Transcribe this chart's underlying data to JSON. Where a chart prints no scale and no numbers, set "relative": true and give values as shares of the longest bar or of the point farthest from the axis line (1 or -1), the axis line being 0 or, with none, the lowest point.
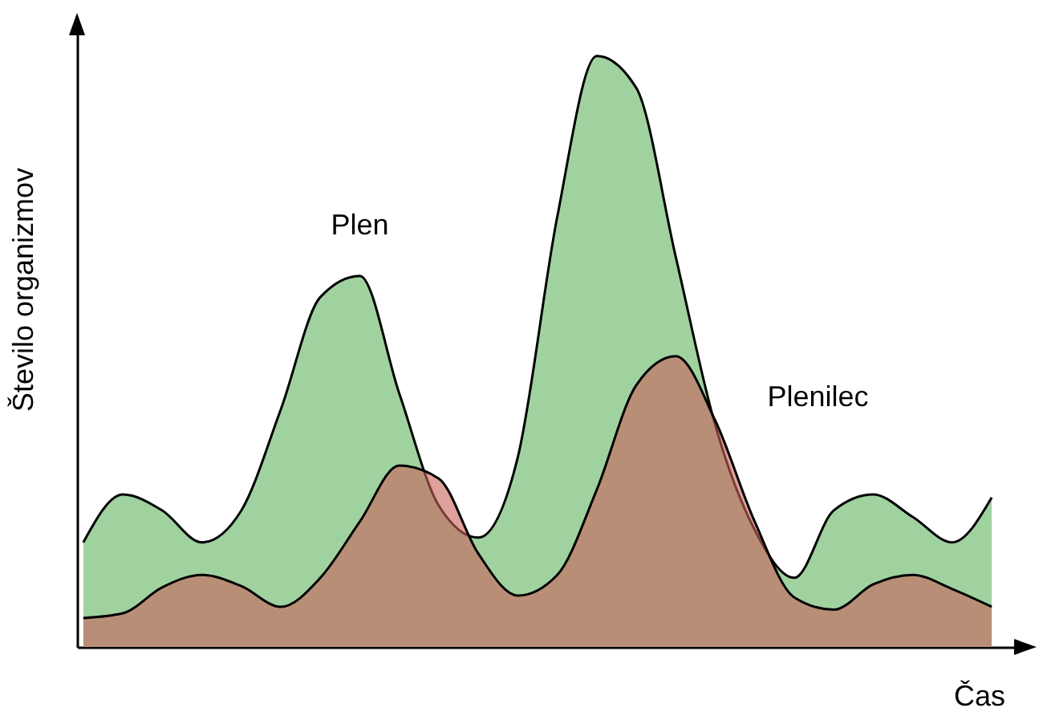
{
  "chart_data": {
    "type": "area",
    "relative": true,
    "xlabel": "Čas",
    "ylabel": "Število organizmov",
    "categories": [
      null,
      null,
      null,
      null,
      null,
      null,
      null,
      null,
      null,
      null,
      null,
      null,
      null,
      null,
      null,
      null,
      null,
      null,
      null,
      null,
      null,
      null,
      null,
      null
    ],
    "series": [
      {
        "name": "Plen",
        "color": "#a0d2a0",
        "values": [
          0.177,
          0.258,
          0.231,
          0.177,
          0.231,
          0.402,
          0.592,
          0.628,
          0.429,
          0.239,
          0.185,
          0.321,
          0.728,
          1.0,
          0.946,
          0.66,
          0.375,
          0.198,
          0.117,
          0.231,
          0.258,
          0.22,
          0.177,
          0.253
        ]
      },
      {
        "name": "Plenilec",
        "color": "#c8625a",
        "values": [
          0.049,
          0.057,
          0.101,
          0.122,
          0.103,
          0.068,
          0.117,
          0.212,
          0.307,
          0.285,
          0.158,
          0.087,
          0.122,
          0.266,
          0.443,
          0.492,
          0.383,
          0.212,
          0.084,
          0.063,
          0.106,
          0.122,
          0.098,
          0.068
        ]
      }
    ]
  }
}
